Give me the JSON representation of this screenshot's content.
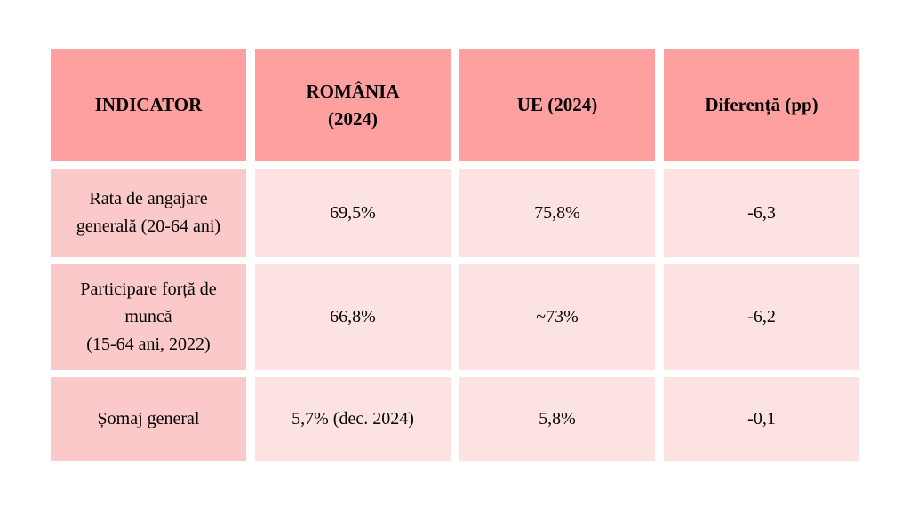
{
  "chart_data": {
    "type": "table",
    "title": "",
    "columns": [
      "INDICATOR",
      "ROMÂNIA\n(2024)",
      "UE (2024)",
      "Diferență (pp)"
    ],
    "rows": [
      {
        "indicator": "Rata de angajare\ngenerală (20-64 ani)",
        "romania_2024": "69,5%",
        "ue_2024": "75,8%",
        "diferenta_pp": "-6,3"
      },
      {
        "indicator": "Participare forță de muncă\n(15-64 ani, 2022)",
        "romania_2024": "66,8%",
        "ue_2024": "~73%",
        "diferenta_pp": "-6,2"
      },
      {
        "indicator": "Șomaj general",
        "romania_2024": "5,7% (dec. 2024)",
        "ue_2024": "5,8%",
        "diferenta_pp": "-0,1"
      }
    ],
    "layout": {
      "legend": "none",
      "grid": "off",
      "cell_gap_color": "#FFFFFF"
    },
    "colors": {
      "header_bg": "#FEA0A0",
      "row_label_bg": "#FBC9C9",
      "value_bg": "#FDE2E2",
      "text": "#000000",
      "page_bg": "#FFFFFF"
    }
  }
}
